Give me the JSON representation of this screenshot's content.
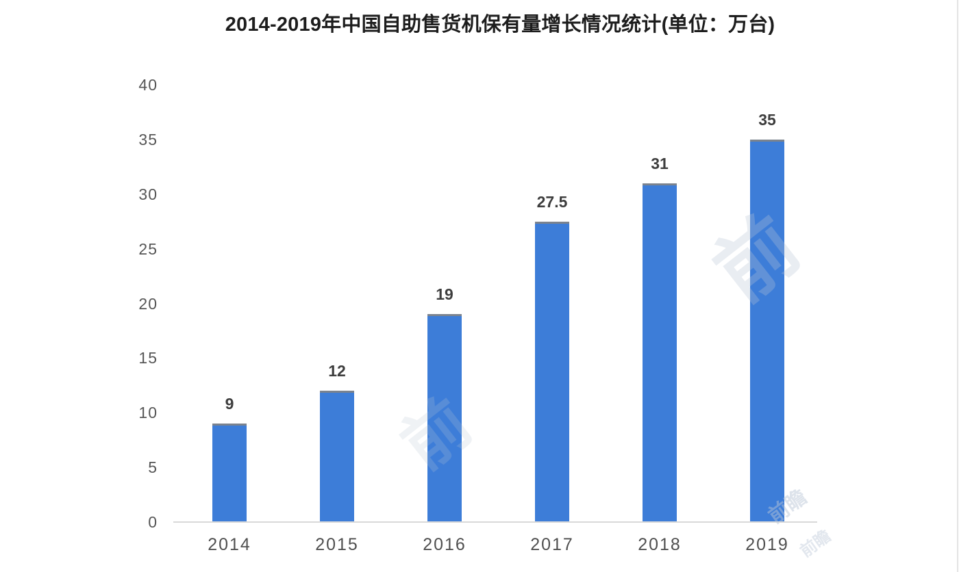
{
  "title": "2014-2019年中国自助售货机保有量增长情况统计(单位：万台)",
  "watermark": {
    "glyph": "前",
    "text": "前瞻"
  },
  "colors": {
    "bar": "#3d7dd8",
    "bar_top_edge": "#7b838e",
    "title_text": "#1d1d1d",
    "value_label": "#3d3d3d",
    "tick_label": "#565656",
    "axis_line": "#d9d9d9"
  },
  "chart_data": {
    "type": "bar",
    "title": "2014-2019年中国自助售货机保有量增长情况统计(单位：万台)",
    "categories": [
      "2014",
      "2015",
      "2016",
      "2017",
      "2018",
      "2019"
    ],
    "values": [
      9,
      12,
      19,
      27.5,
      31,
      35
    ],
    "value_labels": [
      "9",
      "12",
      "19",
      "27.5",
      "31",
      "35"
    ],
    "unit": "万台",
    "xlabel": "",
    "ylabel": "",
    "ylim": [
      0,
      40
    ],
    "yticks": [
      0,
      5,
      10,
      15,
      20,
      25,
      30,
      35,
      40
    ],
    "grid": false,
    "legend": false,
    "bar_color": "#3d7dd8"
  }
}
